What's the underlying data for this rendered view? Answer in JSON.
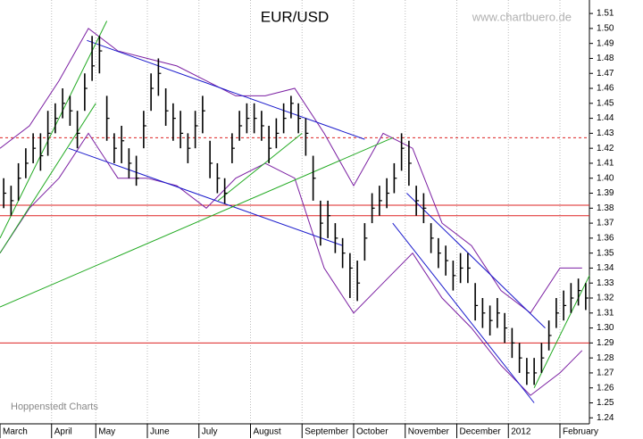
{
  "chart_data": {
    "type": "hlc",
    "title": "EUR/USD",
    "watermark": "www.chartbuero.de",
    "source": "Hoppenstedt Charts",
    "categories": [
      "March",
      null,
      null,
      null,
      null,
      null,
      null,
      "April",
      null,
      null,
      null,
      null,
      null,
      "May",
      null,
      null,
      null,
      null,
      null,
      null,
      "June",
      null,
      null,
      null,
      null,
      null,
      null,
      "July",
      null,
      null,
      null,
      null,
      null,
      null,
      "August",
      null,
      null,
      null,
      null,
      null,
      null,
      "September",
      null,
      null,
      null,
      null,
      null,
      null,
      "October",
      null,
      null,
      null,
      null,
      null,
      null,
      "November",
      null,
      null,
      null,
      null,
      null,
      null,
      "December",
      null,
      null,
      null,
      null,
      null,
      null,
      "2012",
      null,
      null,
      null,
      null,
      null,
      null,
      "February",
      null,
      null,
      null
    ],
    "high": [
      1.4,
      1.395,
      1.41,
      1.42,
      1.43,
      1.43,
      1.445,
      1.45,
      1.46,
      1.455,
      1.445,
      1.47,
      1.495,
      1.495,
      1.455,
      1.43,
      1.435,
      1.42,
      1.415,
      1.445,
      1.47,
      1.48,
      1.46,
      1.45,
      1.445,
      1.43,
      1.445,
      1.455,
      1.425,
      1.41,
      1.4,
      1.43,
      1.445,
      1.45,
      1.45,
      1.445,
      1.435,
      1.44,
      1.45,
      1.455,
      1.45,
      1.44,
      1.415,
      1.385,
      1.385,
      1.37,
      1.36,
      1.35,
      1.345,
      1.37,
      1.39,
      1.395,
      1.4,
      1.41,
      1.43,
      1.425,
      1.395,
      1.39,
      1.37,
      1.36,
      1.355,
      1.345,
      1.35,
      1.35,
      1.33,
      1.32,
      1.315,
      1.32,
      1.31,
      1.3,
      1.29,
      1.28,
      1.28,
      1.29,
      1.305,
      1.32,
      1.325,
      1.33,
      1.333,
      1.33
    ],
    "low": [
      1.38,
      1.375,
      1.385,
      1.4,
      1.41,
      1.405,
      1.415,
      1.43,
      1.44,
      1.435,
      1.42,
      1.445,
      1.465,
      1.47,
      1.425,
      1.41,
      1.41,
      1.4,
      1.395,
      1.42,
      1.445,
      1.455,
      1.435,
      1.425,
      1.42,
      1.41,
      1.42,
      1.43,
      1.4,
      1.39,
      1.383,
      1.41,
      1.425,
      1.43,
      1.43,
      1.425,
      1.41,
      1.42,
      1.43,
      1.44,
      1.43,
      1.415,
      1.385,
      1.355,
      1.36,
      1.35,
      1.34,
      1.32,
      1.318,
      1.345,
      1.37,
      1.375,
      1.38,
      1.39,
      1.405,
      1.395,
      1.375,
      1.37,
      1.35,
      1.34,
      1.335,
      1.325,
      1.33,
      1.33,
      1.305,
      1.3,
      1.295,
      1.3,
      1.29,
      1.28,
      1.27,
      1.262,
      1.262,
      1.27,
      1.285,
      1.3,
      1.305,
      1.31,
      1.315,
      1.312
    ],
    "close": [
      1.39,
      1.385,
      1.4,
      1.41,
      1.42,
      1.415,
      1.43,
      1.44,
      1.45,
      1.445,
      1.43,
      1.46,
      1.475,
      1.485,
      1.44,
      1.42,
      1.425,
      1.41,
      1.4,
      1.435,
      1.46,
      1.47,
      1.445,
      1.44,
      1.43,
      1.42,
      1.435,
      1.445,
      1.41,
      1.4,
      1.39,
      1.42,
      1.435,
      1.44,
      1.44,
      1.435,
      1.42,
      1.43,
      1.44,
      1.45,
      1.44,
      1.43,
      1.4,
      1.37,
      1.375,
      1.36,
      1.35,
      1.34,
      1.33,
      1.36,
      1.38,
      1.385,
      1.39,
      1.4,
      1.42,
      1.41,
      1.385,
      1.38,
      1.36,
      1.35,
      1.345,
      1.335,
      1.34,
      1.34,
      1.315,
      1.31,
      1.305,
      1.31,
      1.3,
      1.29,
      1.28,
      1.27,
      1.27,
      1.28,
      1.295,
      1.31,
      1.315,
      1.32,
      1.325,
      1.32
    ],
    "color": "#000000",
    "bands": {
      "color": "#7b1fa2",
      "x": [
        0,
        4,
        8,
        12,
        16,
        20,
        24,
        28,
        32,
        36,
        40,
        44,
        48,
        52,
        56,
        60,
        64,
        68,
        72,
        76,
        79
      ],
      "upper": [
        1.42,
        1.435,
        1.465,
        1.5,
        1.485,
        1.48,
        1.475,
        1.465,
        1.455,
        1.455,
        1.46,
        1.43,
        1.395,
        1.43,
        1.42,
        1.37,
        1.355,
        1.325,
        1.31,
        1.34,
        1.34
      ],
      "lower": [
        1.35,
        1.38,
        1.4,
        1.43,
        1.4,
        1.4,
        1.395,
        1.38,
        1.4,
        1.41,
        1.4,
        1.34,
        1.31,
        1.33,
        1.35,
        1.32,
        1.3,
        1.275,
        1.255,
        1.27,
        1.285
      ]
    },
    "trendlines": [
      {
        "color": "#1a1acc",
        "x": [
          11.8,
          49.5
        ],
        "y": [
          1.492,
          1.426
        ]
      },
      {
        "color": "#1a1acc",
        "x": [
          9.3,
          46.5
        ],
        "y": [
          1.42,
          1.355
        ]
      },
      {
        "color": "#1a1acc",
        "x": [
          53.3,
          72.5
        ],
        "y": [
          1.37,
          1.25
        ]
      },
      {
        "color": "#1a1acc",
        "x": [
          55.2,
          74
        ],
        "y": [
          1.39,
          1.3
        ]
      },
      {
        "color": "#22aa22",
        "x": [
          0,
          53.3
        ],
        "y": [
          1.314,
          1.427
        ]
      },
      {
        "color": "#22aa22",
        "x": [
          0,
          14.5
        ],
        "y": [
          1.36,
          1.505
        ]
      },
      {
        "color": "#22aa22",
        "x": [
          0,
          13
        ],
        "y": [
          1.35,
          1.45
        ]
      },
      {
        "color": "#22aa22",
        "x": [
          29.6,
          41
        ],
        "y": [
          1.385,
          1.43
        ]
      },
      {
        "color": "#22aa22",
        "x": [
          72.5,
          80
        ],
        "y": [
          1.26,
          1.335
        ]
      }
    ],
    "hlines": [
      {
        "color": "#dd2222",
        "value": 1.427,
        "dashed": true
      },
      {
        "color": "#dd2222",
        "value": 1.382,
        "dashed": false
      },
      {
        "color": "#dd2222",
        "value": 1.375,
        "dashed": false
      },
      {
        "color": "#dd2222",
        "value": 1.29,
        "dashed": false
      }
    ],
    "ylim": [
      1.236,
      1.519
    ],
    "yticks": [
      1.24,
      1.25,
      1.26,
      1.27,
      1.28,
      1.29,
      {
        "value": 1.3,
        "label": "1.30"
      },
      1.31,
      1.32,
      1.33,
      1.34,
      1.35,
      1.36,
      1.37,
      1.38,
      1.39,
      {
        "value": 1.4,
        "label": "1.40"
      },
      1.41,
      1.42,
      1.43,
      1.44,
      1.45,
      1.46,
      1.47,
      1.48,
      1.49,
      {
        "value": 1.5,
        "label": "1.50"
      },
      1.51
    ],
    "grid": true
  }
}
